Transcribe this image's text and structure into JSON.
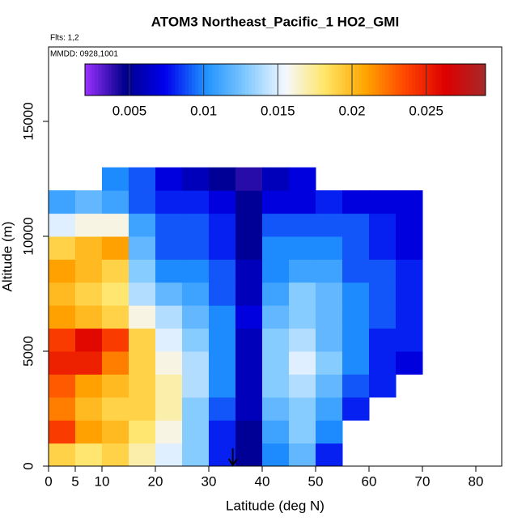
{
  "chart_data": {
    "type": "heatmap",
    "title": "ATOM3 Northeast_Pacific_1 HO2_GMI",
    "subtitle": "Flts: 1,2",
    "annotation": "MMDD: 0928,1001",
    "x_label": "Latitude (deg N)",
    "y_label": "Altitude (m)",
    "xlim": [
      0,
      84.85
    ],
    "ylim": [
      0,
      18239
    ],
    "xticks": [
      0,
      5,
      10,
      20,
      30,
      40,
      50,
      60,
      70,
      80
    ],
    "yticks": [
      0,
      5000,
      10000,
      15000
    ],
    "xbins": [
      0,
      5,
      10,
      15,
      20,
      25,
      30,
      35,
      40,
      45,
      50,
      55,
      60,
      65,
      70,
      75
    ],
    "ybins": [
      0,
      1000,
      2000,
      3000,
      4000,
      5000,
      6000,
      7000,
      8000,
      9000,
      10000,
      11000,
      12000,
      13000
    ],
    "z": [
      [
        0.019,
        0.018,
        0.019,
        0.017,
        0.015,
        0.013,
        0.008,
        0.005,
        0.01,
        0.012,
        0.008,
        null,
        null,
        null,
        null
      ],
      [
        0.024,
        0.021,
        0.02,
        0.018,
        0.016,
        0.013,
        0.008,
        0.005,
        0.011,
        0.013,
        0.01,
        null,
        null,
        null,
        null
      ],
      [
        0.022,
        0.02,
        0.019,
        0.019,
        0.017,
        0.013,
        0.009,
        0.006,
        0.012,
        0.013,
        0.011,
        0.008,
        null,
        null,
        null
      ],
      [
        0.023,
        0.021,
        0.02,
        0.019,
        0.017,
        0.014,
        0.01,
        0.006,
        0.013,
        0.014,
        0.012,
        0.009,
        0.008,
        null,
        null
      ],
      [
        0.025,
        0.025,
        0.022,
        0.019,
        0.016,
        0.014,
        0.01,
        0.006,
        0.013,
        0.015,
        0.013,
        0.01,
        0.008,
        0.007,
        null
      ],
      [
        0.024,
        0.026,
        0.024,
        0.019,
        0.015,
        0.013,
        0.01,
        0.006,
        0.013,
        0.014,
        0.012,
        0.01,
        0.008,
        0.008,
        null
      ],
      [
        0.021,
        0.02,
        0.019,
        0.016,
        0.014,
        0.012,
        0.01,
        0.007,
        0.012,
        0.013,
        0.012,
        0.01,
        0.009,
        0.008,
        null
      ],
      [
        0.02,
        0.019,
        0.018,
        0.014,
        0.012,
        0.011,
        0.009,
        0.006,
        0.011,
        0.013,
        0.012,
        0.01,
        0.009,
        0.008,
        null
      ],
      [
        0.021,
        0.02,
        0.019,
        0.013,
        0.01,
        0.01,
        0.009,
        0.006,
        0.01,
        0.011,
        0.011,
        0.009,
        0.009,
        0.008,
        null
      ],
      [
        0.019,
        0.02,
        0.021,
        0.012,
        0.009,
        0.009,
        0.008,
        0.005,
        0.01,
        0.01,
        0.01,
        0.009,
        0.008,
        0.007,
        null
      ],
      [
        0.015,
        0.016,
        0.016,
        0.011,
        0.009,
        0.009,
        0.008,
        0.005,
        0.009,
        0.009,
        0.009,
        0.009,
        0.008,
        0.007,
        null
      ],
      [
        0.011,
        0.012,
        0.011,
        0.009,
        0.008,
        0.008,
        0.007,
        0.005,
        0.007,
        0.007,
        0.008,
        0.007,
        0.007,
        0.007,
        null
      ],
      [
        null,
        null,
        0.01,
        0.009,
        0.007,
        0.006,
        0.005,
        0.004,
        0.006,
        0.007,
        null,
        null,
        null,
        null,
        null
      ]
    ],
    "clim": [
      0.002,
      0.029
    ],
    "cticks": [
      0.005,
      0.01,
      0.015,
      0.02,
      0.025
    ],
    "colormap": [
      "#9b30ff",
      "#00008b",
      "#0000ee",
      "#1e90ff",
      "#7ec8ff",
      "#f5f8ff",
      "#ffe566",
      "#ffa500",
      "#ff4500",
      "#dd0000",
      "#a52a2a"
    ]
  }
}
